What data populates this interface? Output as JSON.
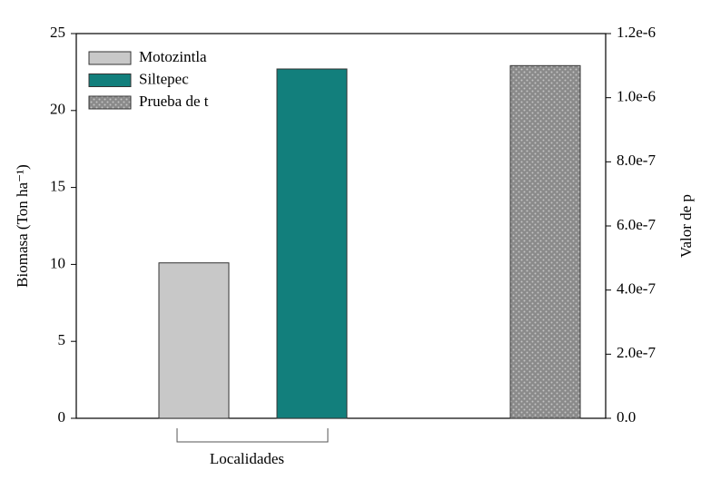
{
  "chart_data": {
    "type": "bar",
    "x_label": "Localidades",
    "y_label": "Biomasa (Ton ha⁻¹)",
    "y2_label": "Valor de p",
    "categories": [
      null,
      null,
      null
    ],
    "series": [
      {
        "name": "Motozintla",
        "color": "#c8c8c8",
        "values": [
          10.1,
          null,
          null
        ]
      },
      {
        "name": "Siltepec",
        "color": "#127f7c",
        "values": [
          null,
          22.7,
          null
        ]
      },
      {
        "name": "Prueba de t",
        "color": "#8a8a8a",
        "pattern": "dots",
        "axis": "y2",
        "values": [
          null,
          null,
          1.1e-06
        ]
      }
    ],
    "ylim": [
      0,
      25
    ],
    "yticks": [
      0,
      5,
      10,
      15,
      20,
      25
    ],
    "y2lim": [
      0,
      1.2e-06
    ],
    "y2ticks": [
      {
        "value": 0,
        "label": "0.0"
      },
      {
        "value": 2e-07,
        "label": "2.0e-7"
      },
      {
        "value": 4e-07,
        "label": "4.0e-7"
      },
      {
        "value": 6e-07,
        "label": "6.0e-7"
      },
      {
        "value": 8e-07,
        "label": "8.0e-7"
      },
      {
        "value": 1e-06,
        "label": "1.0e-6"
      },
      {
        "value": 1.2e-06,
        "label": "1.2e-6"
      }
    ],
    "legend": "upper left",
    "grid": false
  }
}
